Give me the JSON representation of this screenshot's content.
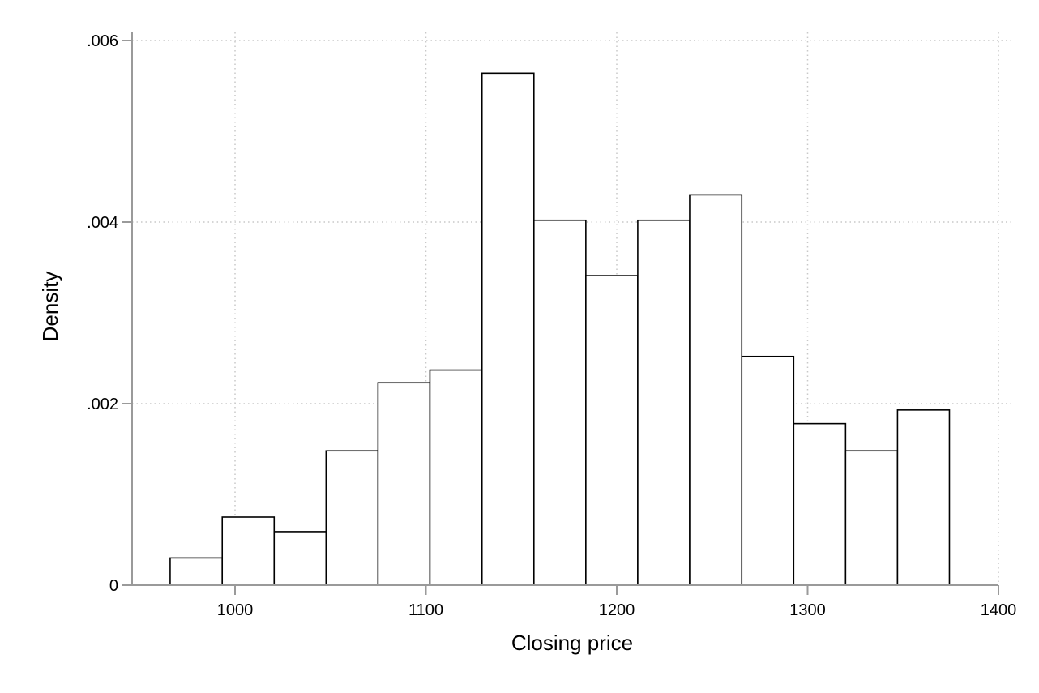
{
  "chart_data": {
    "type": "bar",
    "xlabel": "Closing price",
    "ylabel": "Density",
    "xlim": [
      950,
      1400
    ],
    "ylim": [
      0,
      0.006
    ],
    "grid": true,
    "x_ticks": [
      {
        "value": 1000,
        "label": "1000"
      },
      {
        "value": 1100,
        "label": "1100"
      },
      {
        "value": 1200,
        "label": "1200"
      },
      {
        "value": 1300,
        "label": "1300"
      },
      {
        "value": 1400,
        "label": "1400"
      }
    ],
    "y_ticks": [
      {
        "value": 0,
        "label": "0"
      },
      {
        "value": 0.002,
        "label": ".002"
      },
      {
        "value": 0.004,
        "label": ".004"
      },
      {
        "value": 0.006,
        "label": ".006"
      }
    ],
    "bins": [
      {
        "start": 966,
        "end": 993.3,
        "density": 0.0003
      },
      {
        "start": 993.3,
        "end": 1020.5,
        "density": 0.00075
      },
      {
        "start": 1020.5,
        "end": 1047.7,
        "density": 0.00059
      },
      {
        "start": 1047.7,
        "end": 1074.9,
        "density": 0.00148
      },
      {
        "start": 1074.9,
        "end": 1102.1,
        "density": 0.00223
      },
      {
        "start": 1102.1,
        "end": 1129.4,
        "density": 0.00237
      },
      {
        "start": 1129.4,
        "end": 1156.6,
        "density": 0.00564
      },
      {
        "start": 1156.6,
        "end": 1183.8,
        "density": 0.00402
      },
      {
        "start": 1183.8,
        "end": 1211.0,
        "density": 0.00341
      },
      {
        "start": 1211.0,
        "end": 1238.2,
        "density": 0.00402
      },
      {
        "start": 1238.2,
        "end": 1265.5,
        "density": 0.0043
      },
      {
        "start": 1265.5,
        "end": 1292.7,
        "density": 0.00252
      },
      {
        "start": 1292.7,
        "end": 1319.9,
        "density": 0.00178
      },
      {
        "start": 1319.9,
        "end": 1347.1,
        "density": 0.00148
      },
      {
        "start": 1347.1,
        "end": 1374.3,
        "density": 0.00193
      }
    ]
  }
}
